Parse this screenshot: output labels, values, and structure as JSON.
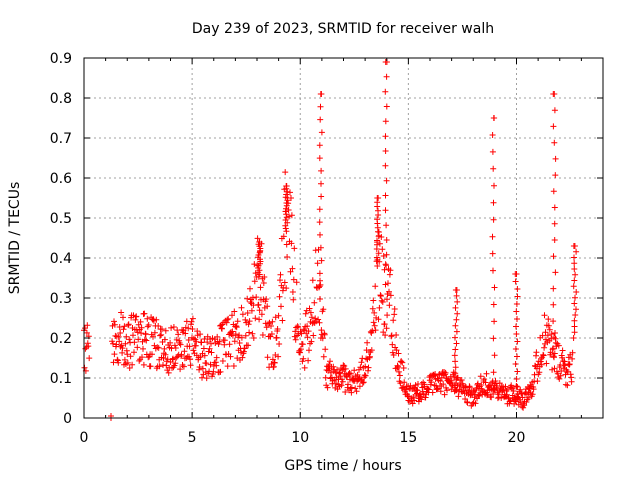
{
  "chart_data": {
    "type": "scatter",
    "title": "Day 239 of 2023, SRMTID for receiver walh",
    "xlabel": "GPS time / hours",
    "ylabel": "SRMTID / TECUs",
    "xlim": [
      0,
      24
    ],
    "ylim": [
      0,
      0.9
    ],
    "x_ticks": [
      0,
      5,
      10,
      15,
      20
    ],
    "x_tick_labels": [
      "0",
      "5",
      "10",
      "15",
      "20"
    ],
    "y_ticks": [
      0,
      0.1,
      0.2,
      0.3,
      0.4,
      0.5,
      0.6,
      0.7,
      0.8,
      0.9
    ],
    "y_tick_labels": [
      "0",
      "0.1",
      "0.2",
      "0.3",
      "0.4",
      "0.5",
      "0.6",
      "0.7",
      "0.8",
      "0.9"
    ],
    "grid": true,
    "marker": "+",
    "color": "#ff0000",
    "trend": [
      [
        0.0,
        0.18
      ],
      [
        0.2,
        0.17
      ],
      [
        1.2,
        0.16
      ],
      [
        1.5,
        0.2
      ],
      [
        2.0,
        0.19
      ],
      [
        2.5,
        0.2
      ],
      [
        3.0,
        0.19
      ],
      [
        3.5,
        0.18
      ],
      [
        4.0,
        0.17
      ],
      [
        4.5,
        0.17
      ],
      [
        5.0,
        0.19
      ],
      [
        5.5,
        0.15
      ],
      [
        6.0,
        0.16
      ],
      [
        6.5,
        0.18
      ],
      [
        7.0,
        0.2
      ],
      [
        7.5,
        0.24
      ],
      [
        7.8,
        0.26
      ],
      [
        8.0,
        0.38
      ],
      [
        8.3,
        0.3
      ],
      [
        8.6,
        0.17
      ],
      [
        9.0,
        0.2
      ],
      [
        9.3,
        0.48
      ],
      [
        9.6,
        0.4
      ],
      [
        9.8,
        0.28
      ],
      [
        10.0,
        0.17
      ],
      [
        10.5,
        0.22
      ],
      [
        10.8,
        0.35
      ],
      [
        11.0,
        0.28
      ],
      [
        11.2,
        0.12
      ],
      [
        11.6,
        0.09
      ],
      [
        12.0,
        0.1
      ],
      [
        12.5,
        0.09
      ],
      [
        13.0,
        0.12
      ],
      [
        13.3,
        0.2
      ],
      [
        13.6,
        0.38
      ],
      [
        13.9,
        0.3
      ],
      [
        14.2,
        0.28
      ],
      [
        14.5,
        0.14
      ],
      [
        15.0,
        0.06
      ],
      [
        15.5,
        0.06
      ],
      [
        16.0,
        0.08
      ],
      [
        16.5,
        0.09
      ],
      [
        17.0,
        0.09
      ],
      [
        17.5,
        0.07
      ],
      [
        18.0,
        0.05
      ],
      [
        18.5,
        0.09
      ],
      [
        19.0,
        0.07
      ],
      [
        19.5,
        0.06
      ],
      [
        20.0,
        0.06
      ],
      [
        20.3,
        0.05
      ],
      [
        20.8,
        0.09
      ],
      [
        21.2,
        0.2
      ],
      [
        21.6,
        0.18
      ],
      [
        22.0,
        0.13
      ],
      [
        22.3,
        0.12
      ],
      [
        22.6,
        0.14
      ]
    ],
    "spikes": [
      {
        "x": 10.95,
        "y": 0.81
      },
      {
        "x": 13.95,
        "y": 0.89
      },
      {
        "x": 18.95,
        "y": 0.75
      },
      {
        "x": 21.75,
        "y": 0.81
      },
      {
        "x": 9.35,
        "y": 0.58
      },
      {
        "x": 8.1,
        "y": 0.44
      },
      {
        "x": 13.6,
        "y": 0.55
      },
      {
        "x": 22.7,
        "y": 0.43
      },
      {
        "x": 20.0,
        "y": 0.36
      },
      {
        "x": 17.2,
        "y": 0.32
      }
    ],
    "isolated_points": [
      {
        "x": 1.25,
        "y": 0.0
      },
      {
        "x": 1.25,
        "y": 0.005
      }
    ]
  }
}
